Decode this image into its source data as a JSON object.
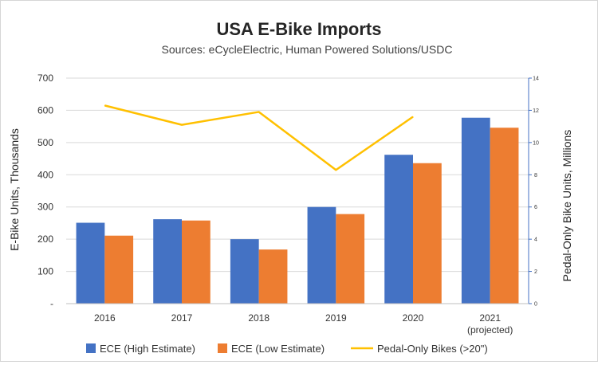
{
  "chart_data": {
    "type": "bar",
    "title": "USA E-Bike Imports",
    "subtitle": "Sources: eCycleElectric, Human Powered Solutions/USDC",
    "categories": [
      "2016",
      "2017",
      "2018",
      "2019",
      "2020",
      "2021"
    ],
    "category_sublabels": [
      "",
      "",
      "",
      "",
      "",
      "(projected)"
    ],
    "ylabel_left": "E-Bike Units, Thousands",
    "ylabel_right": "Pedal-Only Bike Units, Millions",
    "ylim_left": [
      0,
      700
    ],
    "ylim_right": [
      0,
      14
    ],
    "yticks_left": [
      "-",
      "100",
      "200",
      "300",
      "400",
      "500",
      "600",
      "700"
    ],
    "yticks_right": [
      "0",
      "2",
      "4",
      "6",
      "8",
      "10",
      "12",
      "14"
    ],
    "series": [
      {
        "name": "ECE (High Estimate)",
        "type": "bar",
        "axis": "left",
        "color": "#4472C4",
        "values": [
          251,
          262,
          200,
          300,
          462,
          577
        ]
      },
      {
        "name": "ECE (Low Estimate)",
        "type": "bar",
        "axis": "left",
        "color": "#ED7D31",
        "values": [
          211,
          258,
          168,
          278,
          436,
          546
        ]
      },
      {
        "name": "Pedal-Only Bikes (>20\")",
        "type": "line",
        "axis": "right",
        "color": "#FFC000",
        "values": [
          12.3,
          11.1,
          11.9,
          8.3,
          11.6,
          null
        ]
      }
    ],
    "grid": true,
    "legend_position": "bottom"
  }
}
